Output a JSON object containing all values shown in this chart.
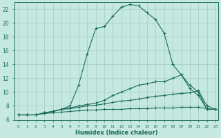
{
  "xlabel": "Humidex (Indice chaleur)",
  "background_color": "#c5e8e0",
  "grid_color": "#aacfc8",
  "line_color": "#1a6b5a",
  "xmin": 0,
  "xmax": 23,
  "ymin": 6,
  "ymax": 23,
  "yticks": [
    6,
    8,
    10,
    12,
    14,
    16,
    18,
    20,
    22
  ],
  "xticks": [
    0,
    1,
    2,
    3,
    4,
    5,
    6,
    7,
    8,
    9,
    10,
    11,
    12,
    13,
    14,
    15,
    16,
    17,
    18,
    19,
    20,
    21,
    22,
    23
  ],
  "curve1_x": [
    0,
    1,
    2,
    3,
    4,
    5,
    6,
    7,
    8,
    9,
    10,
    11,
    12,
    13,
    14,
    15,
    16,
    17,
    18,
    19,
    20,
    21,
    22,
    23
  ],
  "curve1_y": [
    6.7,
    6.7,
    6.7,
    7.0,
    7.2,
    7.5,
    8.0,
    11.0,
    15.5,
    19.2,
    19.5,
    21.0,
    22.3,
    22.7,
    22.5,
    21.5,
    20.5,
    18.5,
    14.0,
    12.5,
    11.0,
    10.0,
    7.5,
    7.5
  ],
  "curve2_x": [
    0,
    1,
    2,
    3,
    4,
    5,
    6,
    7,
    8,
    9,
    10,
    11,
    12,
    13,
    14,
    15,
    16,
    17,
    18,
    19,
    20,
    21,
    22,
    23
  ],
  "curve2_y": [
    6.7,
    6.7,
    6.7,
    7.0,
    7.2,
    7.5,
    7.7,
    8.0,
    8.2,
    8.4,
    8.8,
    9.5,
    10.0,
    10.5,
    11.0,
    11.2,
    11.5,
    11.5,
    12.0,
    12.5,
    10.5,
    9.5,
    7.5,
    7.5
  ],
  "curve3_x": [
    0,
    1,
    2,
    3,
    4,
    5,
    6,
    7,
    8,
    9,
    10,
    11,
    12,
    13,
    14,
    15,
    16,
    17,
    18,
    19,
    20,
    21,
    22,
    23
  ],
  "curve3_y": [
    6.7,
    6.7,
    6.7,
    7.0,
    7.2,
    7.5,
    7.6,
    7.8,
    8.0,
    8.1,
    8.3,
    8.5,
    8.7,
    8.8,
    9.0,
    9.2,
    9.4,
    9.5,
    9.7,
    9.8,
    9.9,
    10.2,
    8.0,
    7.5
  ],
  "curve4_x": [
    0,
    1,
    2,
    3,
    4,
    5,
    6,
    7,
    8,
    9,
    10,
    11,
    12,
    13,
    14,
    15,
    16,
    17,
    18,
    19,
    20,
    21,
    22,
    23
  ],
  "curve4_y": [
    6.7,
    6.7,
    6.7,
    6.9,
    7.0,
    7.1,
    7.2,
    7.3,
    7.4,
    7.4,
    7.5,
    7.5,
    7.5,
    7.6,
    7.6,
    7.6,
    7.7,
    7.7,
    7.7,
    7.8,
    7.8,
    7.8,
    7.6,
    7.5
  ]
}
